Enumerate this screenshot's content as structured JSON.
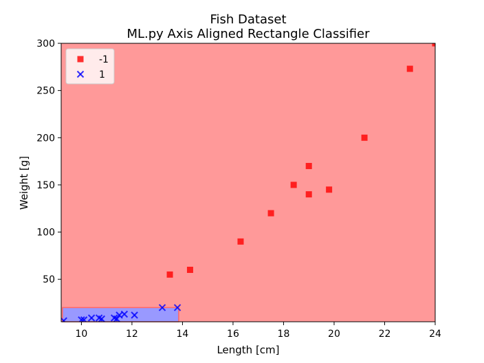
{
  "chart_data": {
    "type": "scatter",
    "title": "Fish Dataset",
    "subtitle": "ML.py Axis Aligned Rectangle Classifier",
    "xlabel": "Length [cm]",
    "ylabel": "Weight [g]",
    "xlim": [
      9.2,
      24
    ],
    "ylim": [
      5,
      300
    ],
    "xticks": [
      10,
      12,
      14,
      16,
      18,
      20,
      22,
      24
    ],
    "yticks": [
      50,
      100,
      150,
      200,
      250,
      300
    ],
    "grid": false,
    "legend_position": "top-left",
    "background_region": {
      "label": "-1",
      "color": "#ff9999"
    },
    "classifier_rectangle": {
      "label": "1",
      "x": [
        9.25,
        13.85
      ],
      "y": [
        5,
        20
      ],
      "color": "#9999ff",
      "edge_color": "#ff6666"
    },
    "series": [
      {
        "name": "-1",
        "marker": "square",
        "color": "#ff0000",
        "points": [
          [
            13.5,
            55
          ],
          [
            14.3,
            60
          ],
          [
            16.3,
            90
          ],
          [
            17.5,
            120
          ],
          [
            18.4,
            150
          ],
          [
            19.0,
            140
          ],
          [
            19.0,
            170
          ],
          [
            19.8,
            145
          ],
          [
            21.2,
            200
          ],
          [
            23.0,
            273
          ],
          [
            24.0,
            300
          ]
        ]
      },
      {
        "name": "1",
        "marker": "x",
        "color": "#0000ff",
        "points": [
          [
            9.3,
            6
          ],
          [
            10.0,
            7
          ],
          [
            10.1,
            7
          ],
          [
            10.4,
            9
          ],
          [
            10.7,
            9
          ],
          [
            10.8,
            8
          ],
          [
            11.3,
            9
          ],
          [
            11.4,
            8
          ],
          [
            11.5,
            12
          ],
          [
            11.7,
            13
          ],
          [
            12.1,
            12
          ],
          [
            13.2,
            20
          ],
          [
            13.8,
            20
          ]
        ]
      }
    ]
  }
}
